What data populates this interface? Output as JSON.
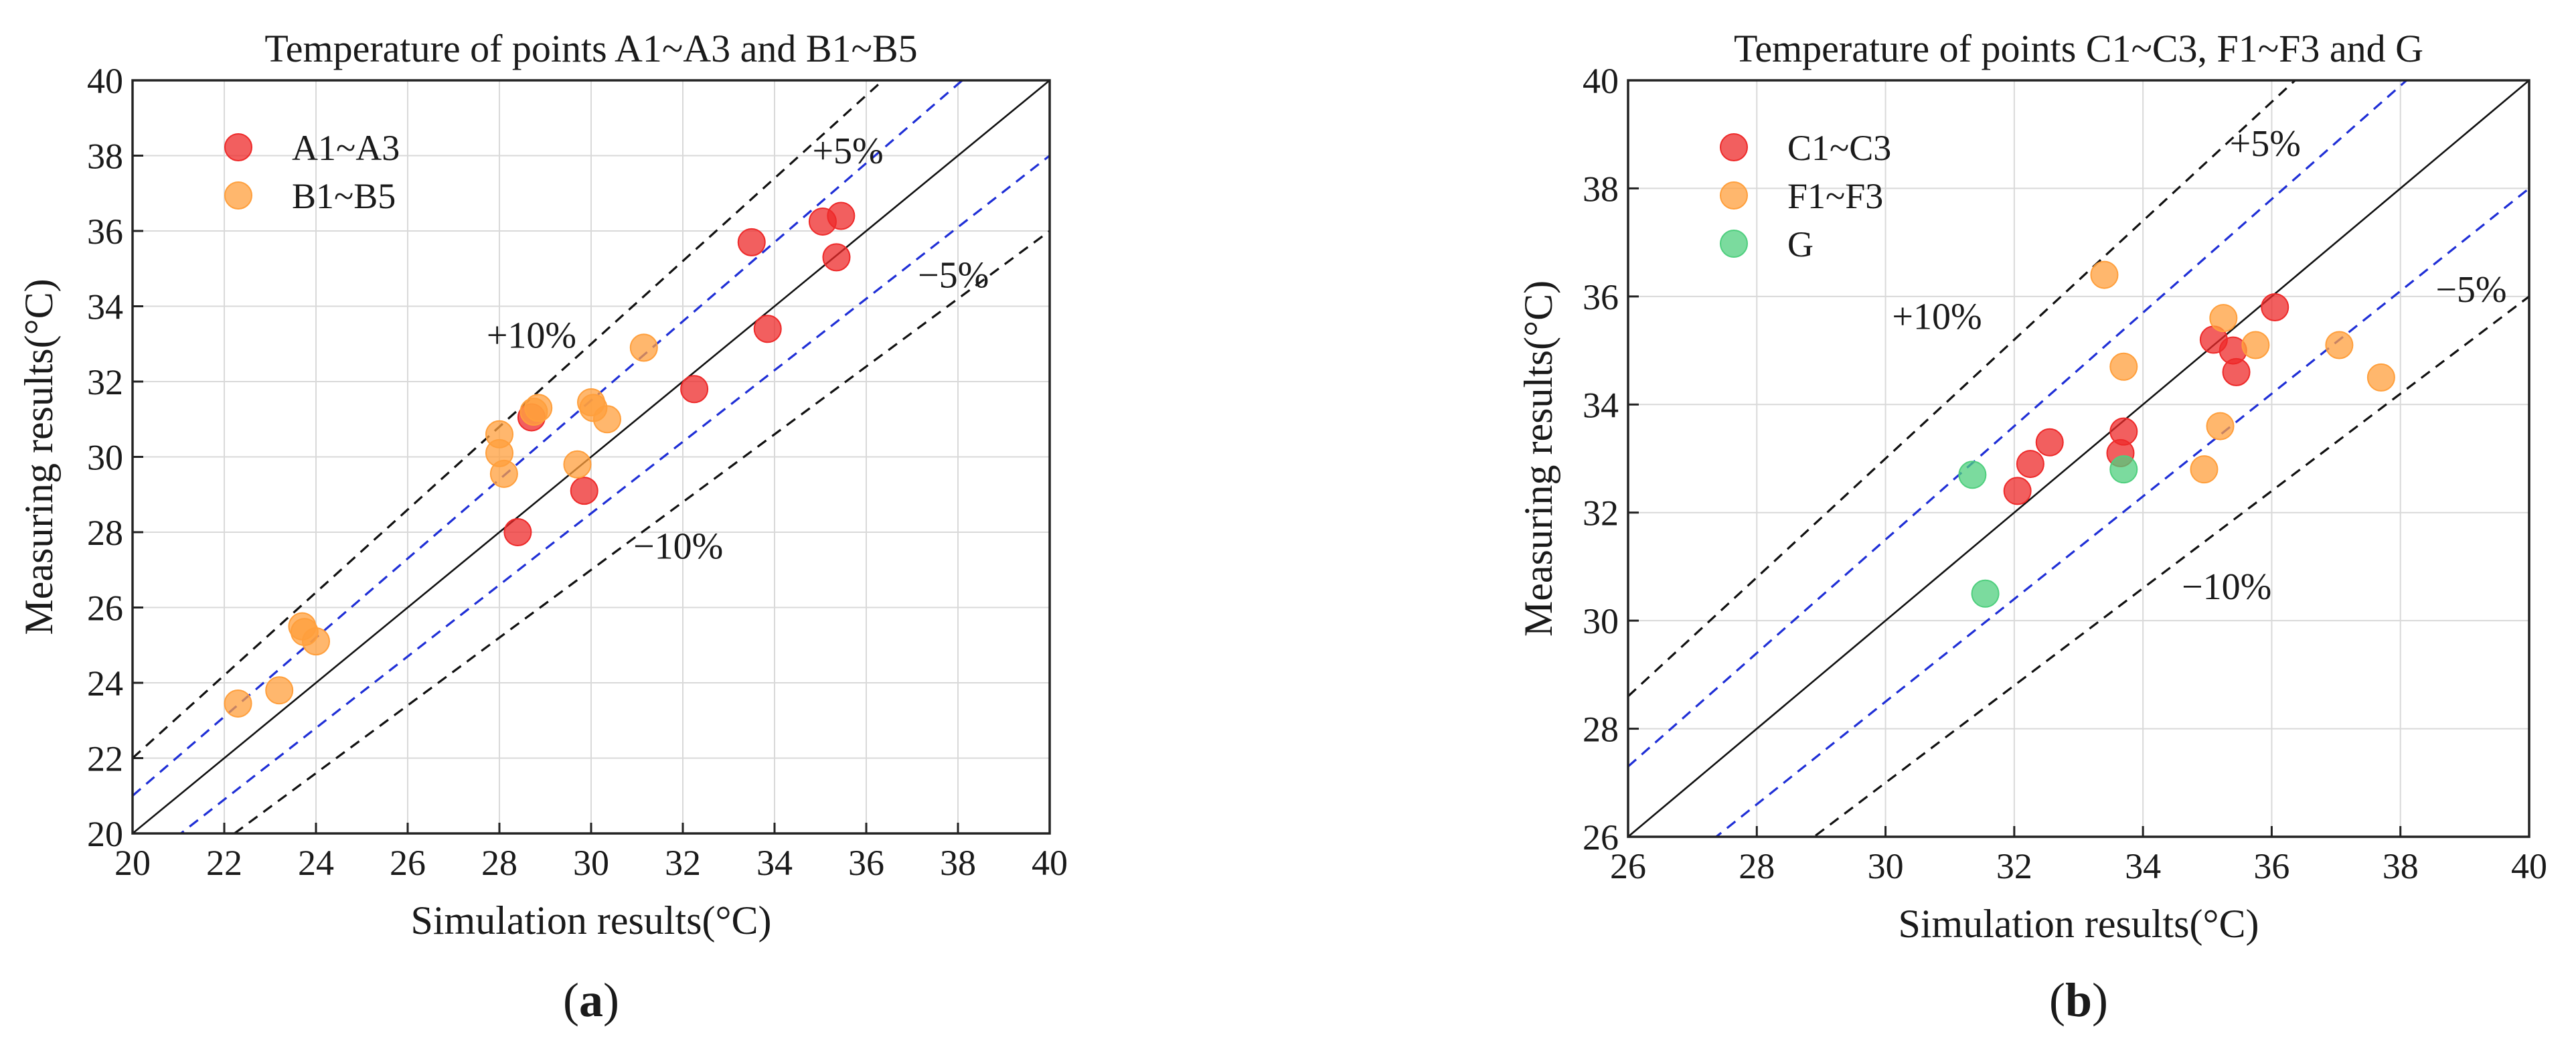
{
  "chart_data": [
    {
      "type": "scatter",
      "panel_label": "(a)",
      "panel_letter": "a",
      "title": "Temperature of points A1~A3 and B1~B5",
      "xlabel": "Simulation results(°C)",
      "ylabel": "Measuring results(°C)",
      "xlim": [
        20,
        40
      ],
      "ylim": [
        20,
        40
      ],
      "xticks": [
        20,
        22,
        24,
        26,
        28,
        30,
        32,
        34,
        36,
        38,
        40
      ],
      "yticks": [
        20,
        22,
        24,
        26,
        28,
        30,
        32,
        34,
        36,
        38,
        40
      ],
      "grid": true,
      "legend_position": "top-left",
      "reference_lines": [
        {
          "name": "y=x",
          "factor": 1.0,
          "color": "#111111",
          "dashed": false
        },
        {
          "name": "+5%",
          "factor": 1.05,
          "color": "#1f2fd6",
          "dashed": true
        },
        {
          "name": "-5%",
          "factor": 0.95,
          "color": "#1f2fd6",
          "dashed": true
        },
        {
          "name": "+10%",
          "factor": 1.1,
          "color": "#111111",
          "dashed": true
        },
        {
          "name": "-10%",
          "factor": 0.9,
          "color": "#111111",
          "dashed": true
        }
      ],
      "annotations": [
        {
          "text": "+5%",
          "x": 35.6,
          "y": 37.8
        },
        {
          "text": "−5%",
          "x": 37.9,
          "y": 34.5
        },
        {
          "text": "+10%",
          "x": 28.7,
          "y": 32.9
        },
        {
          "text": "−10%",
          "x": 31.9,
          "y": 27.3
        }
      ],
      "series": [
        {
          "name": "A1~A3",
          "color": "#ee2a2a",
          "points": [
            [
              35.45,
              36.4
            ],
            [
              35.05,
              36.25
            ],
            [
              33.5,
              35.7
            ],
            [
              35.35,
              35.3
            ],
            [
              33.85,
              33.4
            ],
            [
              32.25,
              31.8
            ],
            [
              28.7,
              31.05
            ],
            [
              29.85,
              29.1
            ],
            [
              28.4,
              28.0
            ]
          ]
        },
        {
          "name": "B1~B5",
          "color": "#ff9f3c",
          "points": [
            [
              31.15,
              32.9
            ],
            [
              28.85,
              31.3
            ],
            [
              28.75,
              31.2
            ],
            [
              30.0,
              31.45
            ],
            [
              30.05,
              31.3
            ],
            [
              30.35,
              31.0
            ],
            [
              28.0,
              30.6
            ],
            [
              28.0,
              30.1
            ],
            [
              28.1,
              29.55
            ],
            [
              29.7,
              29.8
            ],
            [
              23.7,
              25.5
            ],
            [
              23.75,
              25.35
            ],
            [
              24.0,
              25.1
            ],
            [
              23.2,
              23.8
            ],
            [
              22.3,
              23.45
            ]
          ]
        }
      ]
    },
    {
      "type": "scatter",
      "panel_label": "(b)",
      "panel_letter": "b",
      "title": "Temperature of points C1~C3, F1~F3 and G",
      "xlabel": "Simulation results(°C)",
      "ylabel": "Measuring results(°C)",
      "xlim": [
        26,
        40
      ],
      "ylim": [
        26,
        40
      ],
      "xticks": [
        26,
        28,
        30,
        32,
        34,
        36,
        38,
        40
      ],
      "yticks": [
        26,
        28,
        30,
        32,
        34,
        36,
        38,
        40
      ],
      "grid": true,
      "legend_position": "top-left",
      "reference_lines": [
        {
          "name": "y=x",
          "factor": 1.0,
          "color": "#111111",
          "dashed": false
        },
        {
          "name": "+5%",
          "factor": 1.05,
          "color": "#1f2fd6",
          "dashed": true
        },
        {
          "name": "-5%",
          "factor": 0.95,
          "color": "#1f2fd6",
          "dashed": true
        },
        {
          "name": "+10%",
          "factor": 1.1,
          "color": "#111111",
          "dashed": true
        },
        {
          "name": "-10%",
          "factor": 0.9,
          "color": "#111111",
          "dashed": true
        }
      ],
      "annotations": [
        {
          "text": "+5%",
          "x": 35.9,
          "y": 38.6
        },
        {
          "text": "−5%",
          "x": 39.1,
          "y": 35.9
        },
        {
          "text": "+10%",
          "x": 30.8,
          "y": 35.4
        },
        {
          "text": "−10%",
          "x": 35.3,
          "y": 30.4
        }
      ],
      "series": [
        {
          "name": "C1~C3",
          "color": "#ee2a2a",
          "points": [
            [
              36.05,
              35.8
            ],
            [
              35.1,
              35.2
            ],
            [
              35.4,
              35.0
            ],
            [
              35.45,
              34.6
            ],
            [
              33.7,
              33.5
            ],
            [
              33.65,
              33.1
            ],
            [
              32.55,
              33.3
            ],
            [
              32.25,
              32.9
            ],
            [
              32.05,
              32.4
            ]
          ]
        },
        {
          "name": "F1~F3",
          "color": "#ff9f3c",
          "points": [
            [
              33.4,
              36.4
            ],
            [
              35.25,
              35.6
            ],
            [
              35.75,
              35.1
            ],
            [
              37.05,
              35.1
            ],
            [
              33.7,
              34.7
            ],
            [
              37.7,
              34.5
            ],
            [
              35.2,
              33.6
            ],
            [
              34.95,
              32.8
            ]
          ]
        },
        {
          "name": "G",
          "color": "#4fcf7e",
          "points": [
            [
              31.35,
              32.7
            ],
            [
              33.7,
              32.8
            ],
            [
              31.55,
              30.5
            ]
          ]
        }
      ]
    }
  ],
  "line_colors": {
    "identity": "#111111",
    "five_percent": "#1f2fd6",
    "ten_percent": "#111111"
  }
}
